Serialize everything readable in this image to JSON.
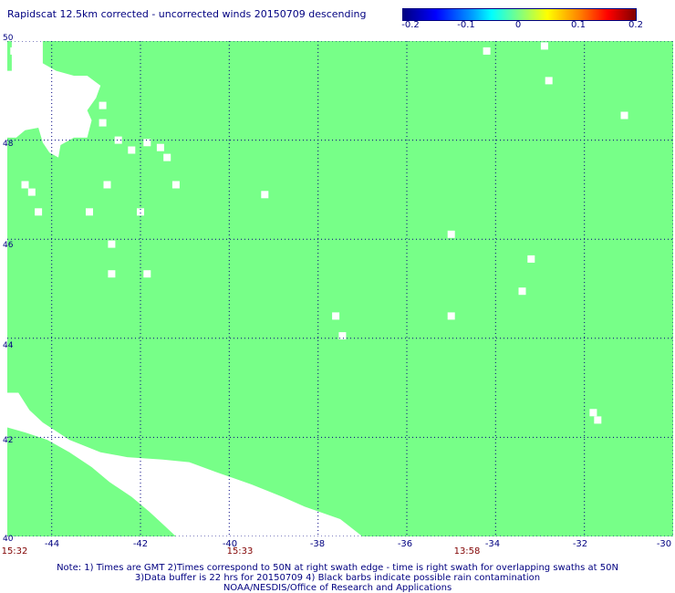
{
  "title": "Rapidscat 12.5km corrected - uncorrected winds 20150709 descending",
  "colorbar": {
    "ticks": [
      "-0.2",
      "-0.1",
      "0",
      "0.1",
      "0.2"
    ],
    "range": [
      -0.2,
      0.2
    ]
  },
  "map": {
    "lon_range": [
      -45,
      -30
    ],
    "lat_range": [
      40,
      50
    ],
    "field_color": "#77ff88",
    "nodata_color": "#ffffff",
    "grid_color": "#000080",
    "lon_ticks": [
      -44,
      -42,
      -40,
      -38,
      -36,
      -34,
      -32,
      -30
    ],
    "lat_ticks": [
      40,
      42,
      44,
      46,
      48,
      50
    ],
    "lon_labels": [
      "-44",
      "-42",
      "-40",
      "-38",
      "-36",
      "-34",
      "-32",
      "-30"
    ],
    "lat_labels": [
      "40",
      "42",
      "44",
      "46",
      "48",
      "50"
    ],
    "time_labels": [
      {
        "lon": -45,
        "text": "15:32"
      },
      {
        "lon": -40,
        "text": "15:33"
      },
      {
        "lon": -35,
        "text": "13:58"
      }
    ],
    "nodata_dots": [
      [
        -44.85,
        49.8
      ],
      [
        -44.65,
        49.6
      ],
      [
        -44.3,
        49.45
      ],
      [
        -44.2,
        49.2
      ],
      [
        -43.6,
        49.15
      ],
      [
        -42.85,
        48.7
      ],
      [
        -42.85,
        48.35
      ],
      [
        -42.5,
        48.0
      ],
      [
        -42.2,
        47.8
      ],
      [
        -41.85,
        47.95
      ],
      [
        -41.55,
        47.85
      ],
      [
        -41.4,
        47.65
      ],
      [
        -42.75,
        47.1
      ],
      [
        -44.45,
        46.95
      ],
      [
        -44.6,
        47.1
      ],
      [
        -44.3,
        46.55
      ],
      [
        -43.15,
        46.55
      ],
      [
        -42.0,
        46.55
      ],
      [
        -41.2,
        47.1
      ],
      [
        -39.2,
        46.9
      ],
      [
        -42.65,
        45.9
      ],
      [
        -42.65,
        45.3
      ],
      [
        -41.85,
        45.3
      ],
      [
        -35.0,
        46.1
      ],
      [
        -33.2,
        45.6
      ],
      [
        -33.4,
        44.95
      ],
      [
        -35.0,
        44.45
      ],
      [
        -37.6,
        44.45
      ],
      [
        -37.45,
        44.05
      ],
      [
        -34.2,
        49.8
      ],
      [
        -32.8,
        49.2
      ],
      [
        -31.1,
        48.5
      ],
      [
        -31.8,
        42.5
      ],
      [
        -31.7,
        42.35
      ],
      [
        -32.9,
        49.9
      ]
    ],
    "nodata_polygons": [
      [
        [
          -44.9,
          50
        ],
        [
          -44.9,
          49.4
        ],
        [
          -45,
          49.4
        ],
        [
          -45,
          48.05
        ],
        [
          -44.8,
          48.05
        ],
        [
          -44.6,
          48.2
        ],
        [
          -44.3,
          48.25
        ],
        [
          -44.2,
          47.95
        ],
        [
          -44.05,
          47.75
        ],
        [
          -43.85,
          47.65
        ],
        [
          -43.8,
          47.9
        ],
        [
          -43.5,
          48.05
        ],
        [
          -43.2,
          48.05
        ],
        [
          -43.1,
          48.4
        ],
        [
          -43.2,
          48.6
        ],
        [
          -43.0,
          48.85
        ],
        [
          -42.9,
          49.1
        ],
        [
          -43.2,
          49.3
        ],
        [
          -43.5,
          49.3
        ],
        [
          -43.9,
          49.4
        ],
        [
          -44.2,
          49.55
        ],
        [
          -44.2,
          50
        ]
      ],
      [
        [
          -45,
          42.9
        ],
        [
          -44.75,
          42.9
        ],
        [
          -44.5,
          42.55
        ],
        [
          -44.2,
          42.3
        ],
        [
          -43.6,
          41.95
        ],
        [
          -42.9,
          41.7
        ],
        [
          -42.3,
          41.6
        ],
        [
          -41.5,
          41.55
        ],
        [
          -40.9,
          41.5
        ],
        [
          -40.3,
          41.3
        ],
        [
          -39.5,
          41.05
        ],
        [
          -38.8,
          40.8
        ],
        [
          -38.3,
          40.6
        ],
        [
          -37.5,
          40.35
        ],
        [
          -37.0,
          40
        ],
        [
          -41.2,
          40
        ],
        [
          -41.5,
          40.25
        ],
        [
          -41.8,
          40.5
        ],
        [
          -42.2,
          40.8
        ],
        [
          -42.7,
          41.1
        ],
        [
          -43.1,
          41.4
        ],
        [
          -43.6,
          41.7
        ],
        [
          -44.1,
          41.95
        ],
        [
          -44.6,
          42.1
        ],
        [
          -45,
          42.2
        ]
      ]
    ]
  },
  "notes": [
    "Note: 1) Times are GMT 2)Times correspond to 50N at right swath edge - time is right swath for overlapping swaths at 50N",
    "3)Data buffer is 22 hrs for 20150709 4) Black barbs indicate possible rain contamination",
    "NOAA/NESDIS/Office of Research and Applications"
  ]
}
